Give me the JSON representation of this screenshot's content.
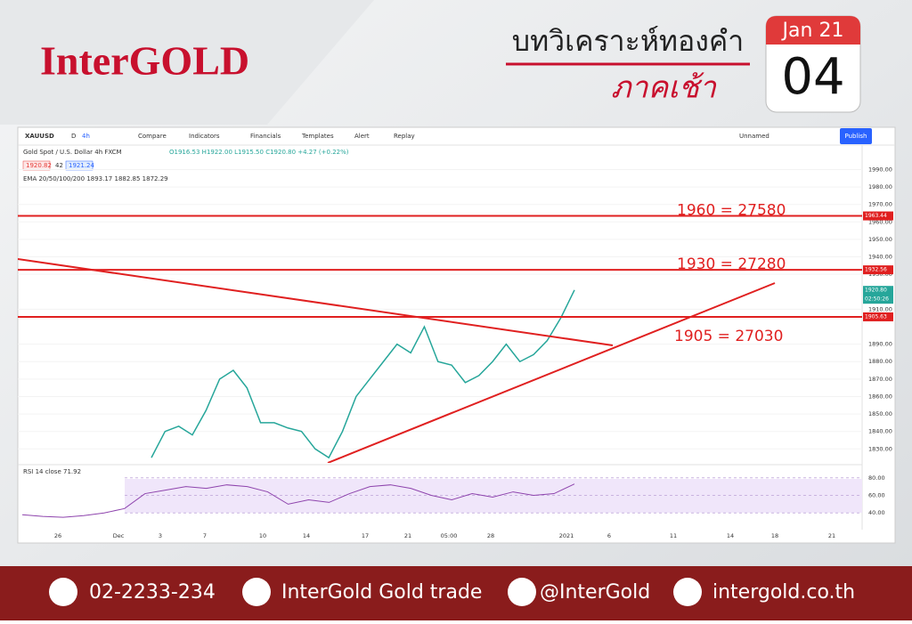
{
  "header": {
    "logo": "InterGOLD",
    "title": "บทวิเคราะห์ทองคำ",
    "subtitle": "ภาคเช้า",
    "calendar": {
      "month": "Jan 21",
      "day": "04"
    }
  },
  "toolbar": {
    "symbol": "XAUUSD",
    "interval_d": "D",
    "interval": "4h",
    "items": [
      "Compare",
      "Indicators",
      "Financials",
      "Templates",
      "Alert",
      "Replay"
    ],
    "layout": "Unnamed",
    "publish": "Publish"
  },
  "chart_data": {
    "type": "line",
    "legend": {
      "name": "Gold Spot / U.S. Dollar  4h  FXCM",
      "ohlc": "O1916.53 H1922.00 L1915.50 C1920.80 +4.27 (+0.22%)",
      "bid": "1920.82",
      "spread": "42",
      "ask": "1921.24",
      "ema": "EMA 20/50/100/200  1893.17  1882.85  1872.29"
    },
    "color": "#26a69a",
    "values": [
      1825,
      1840,
      1843,
      1838,
      1852,
      1870,
      1875,
      1865,
      1845,
      1845,
      1842,
      1840,
      1830,
      1825,
      1840,
      1860,
      1870,
      1880,
      1890,
      1885,
      1900,
      1880,
      1878,
      1868,
      1872,
      1880,
      1890,
      1880,
      1884,
      1892,
      1905,
      1921
    ],
    "ylim": [
      1822,
      2004
    ],
    "yticks": [
      {
        "value": 1990,
        "label": "1990.00"
      },
      {
        "value": 1980,
        "label": "1980.00"
      },
      {
        "value": 1970,
        "label": "1970.00"
      },
      {
        "value": 1960,
        "label": "1960.00"
      },
      {
        "value": 1950,
        "label": "1950.00"
      },
      {
        "value": 1940,
        "label": "1940.00"
      },
      {
        "value": 1930,
        "label": "1930.00"
      },
      {
        "value": 1910,
        "label": "1910.00"
      },
      {
        "value": 1890,
        "label": "1890.00"
      },
      {
        "value": 1880,
        "label": "1880.00"
      },
      {
        "value": 1870,
        "label": "1870.00"
      },
      {
        "value": 1860,
        "label": "1860.00"
      },
      {
        "value": 1850,
        "label": "1850.00"
      },
      {
        "value": 1840,
        "label": "1840.00"
      },
      {
        "value": 1830,
        "label": "1830.00"
      }
    ],
    "levels": {
      "values": [
        1963.44,
        1932.56,
        1905.63
      ],
      "annotations": [
        "1960 = 27580",
        "1930 = 27280",
        "1905 = 27030"
      ],
      "color": "#e02020"
    },
    "last_price": {
      "value": 1920.8,
      "label": "1920.80"
    },
    "countdown": "02:50:26",
    "xlabels": [
      "26",
      "Dec",
      "3",
      "7",
      "10",
      "14",
      "17",
      "21",
      "05:00",
      "28",
      "2021",
      "6",
      "11",
      "14",
      "18",
      "21"
    ],
    "rsi": {
      "label": "RSI 14 close 71.92",
      "color": "#8e44ad",
      "ylim": [
        23,
        94
      ],
      "yticks": [
        {
          "value": 80,
          "label": "80.00"
        },
        {
          "value": 60,
          "label": "60.00"
        },
        {
          "value": 40,
          "label": "40.00"
        }
      ],
      "values": [
        38,
        36,
        35,
        37,
        40,
        45,
        62,
        66,
        70,
        68,
        72,
        70,
        64,
        50,
        55,
        52,
        62,
        70,
        72,
        68,
        60,
        55,
        62,
        58,
        64,
        60,
        62,
        73
      ]
    }
  },
  "footer": {
    "phone": "02-2233-234",
    "facebook": "InterGold Gold trade",
    "line": "@InterGold",
    "web": "intergold.co.th"
  }
}
